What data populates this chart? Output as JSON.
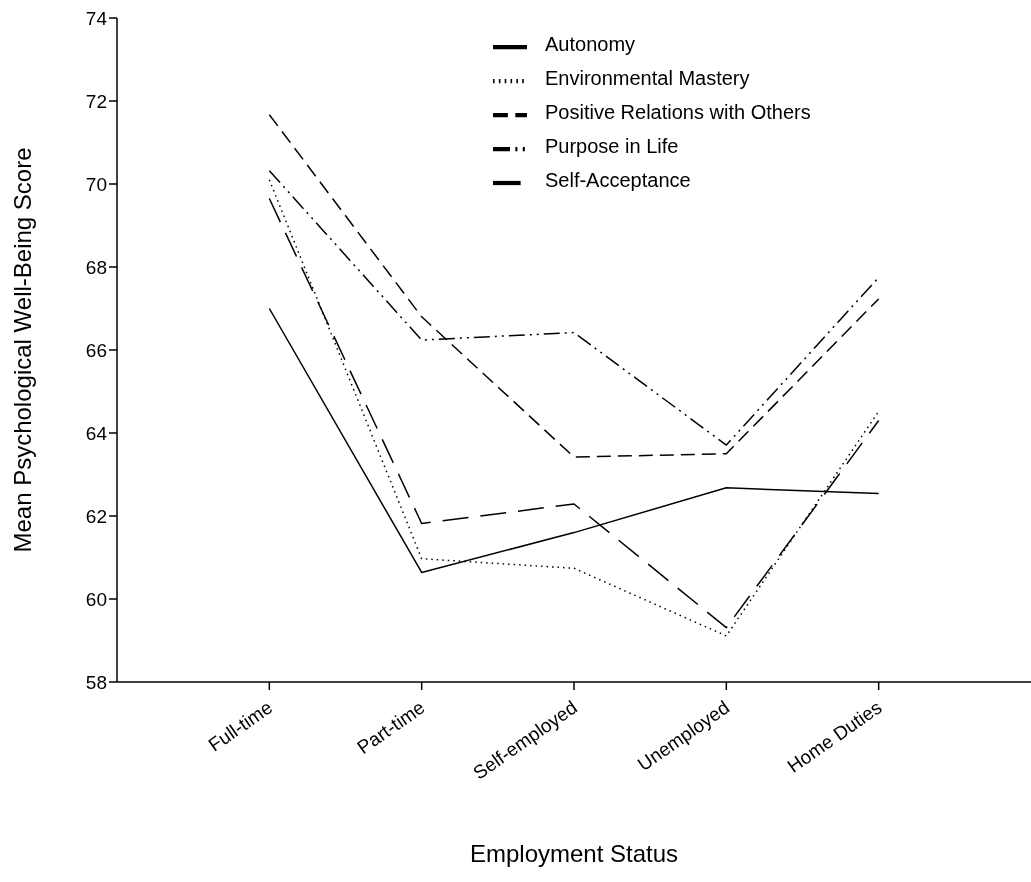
{
  "chart_data": {
    "type": "line",
    "xlabel": "Employment Status",
    "ylabel": "Mean Psychological Well-Being Score",
    "categories": [
      "Full-time",
      "Part-time",
      "Self-employed",
      "Unemployed",
      "Home Duties"
    ],
    "series": [
      {
        "name": "Autonomy",
        "color": "#000000",
        "line_style": "solid",
        "values": [
          67.0,
          60.64,
          61.6,
          62.68,
          62.54
        ]
      },
      {
        "name": "Environmental Mastery",
        "color": "#000000",
        "line_style": "dotted",
        "values": [
          70.1,
          60.97,
          60.74,
          59.11,
          64.52
        ]
      },
      {
        "name": "Positive Relations with Others",
        "color": "#000000",
        "line_style": "dashed",
        "values": [
          71.67,
          66.8,
          63.42,
          63.5,
          67.23
        ]
      },
      {
        "name": "Purpose in Life",
        "color": "#000000",
        "line_style": "dashdot",
        "values": [
          70.32,
          66.24,
          66.42,
          63.71,
          67.75
        ]
      },
      {
        "name": "Self-Acceptance",
        "color": "#000000",
        "line_style": "longdash",
        "values": [
          69.65,
          61.82,
          62.29,
          59.31,
          64.3
        ]
      }
    ],
    "ylim": [
      58,
      74
    ],
    "yticks": [
      58,
      60,
      62,
      64,
      66,
      68,
      70,
      72,
      74
    ],
    "grid": false,
    "legend": "top right",
    "marker": "none"
  }
}
